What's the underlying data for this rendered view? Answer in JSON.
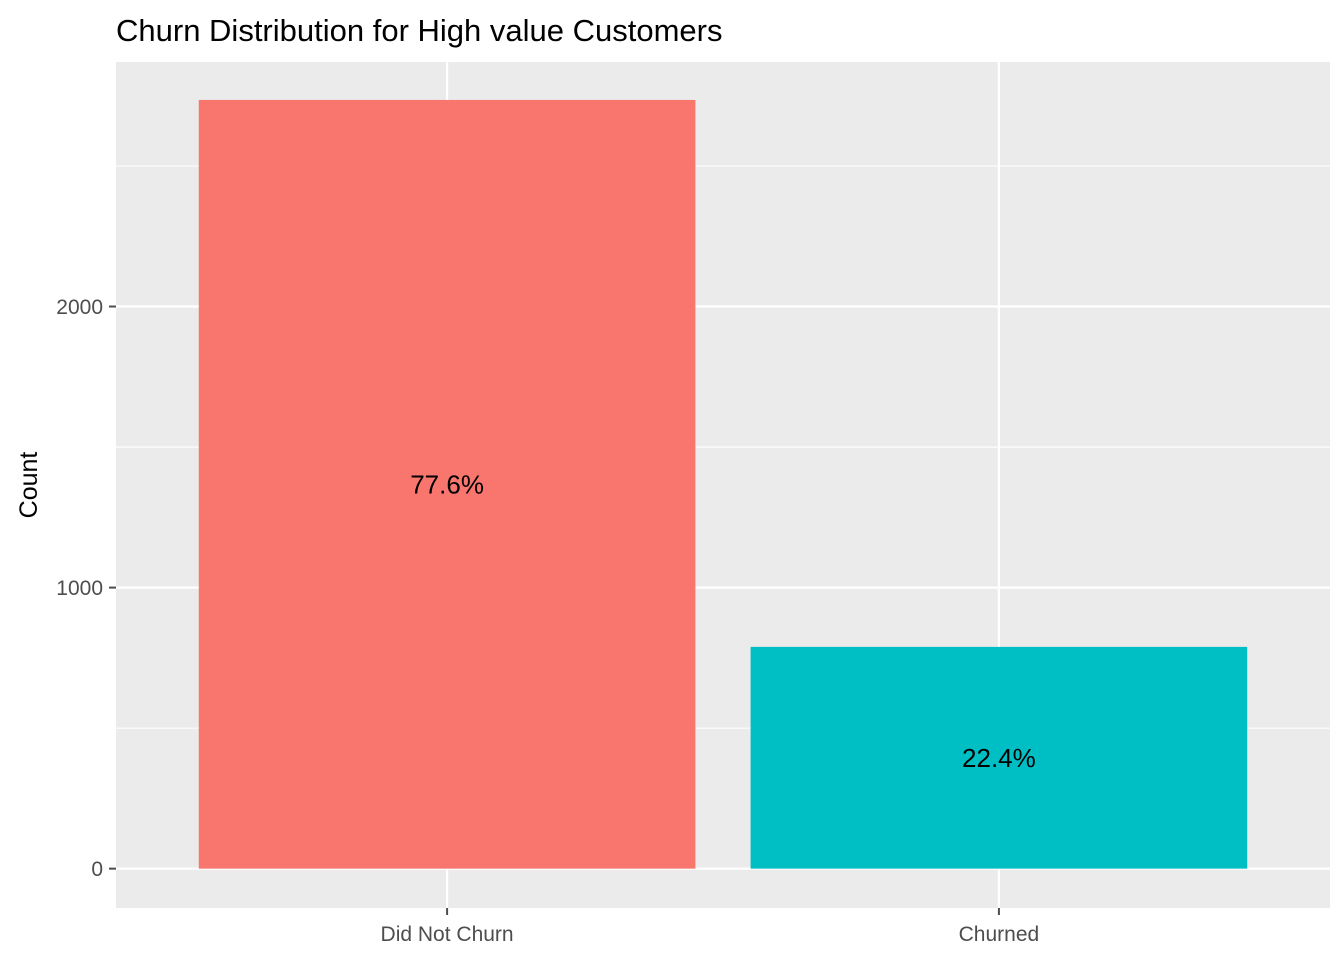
{
  "chart_data": {
    "type": "bar",
    "title": "Churn Distribution for High value Customers",
    "xlabel": "",
    "ylabel": "Count",
    "categories": [
      "Did Not Churn",
      "Churned"
    ],
    "values": [
      2735,
      789
    ],
    "bar_labels": [
      "77.6%",
      "22.4%"
    ],
    "colors": [
      "#F8766D",
      "#00BFC4"
    ],
    "ylim": [
      -140,
      2870
    ],
    "y_ticks": [
      0,
      1000,
      2000
    ],
    "y_tick_labels": [
      "0",
      "1000",
      "2000"
    ],
    "grid": true,
    "legend": "none",
    "panel_background": "#EBEBEB",
    "grid_color": "#FFFFFF",
    "tick_color": "#4D4D4D"
  }
}
